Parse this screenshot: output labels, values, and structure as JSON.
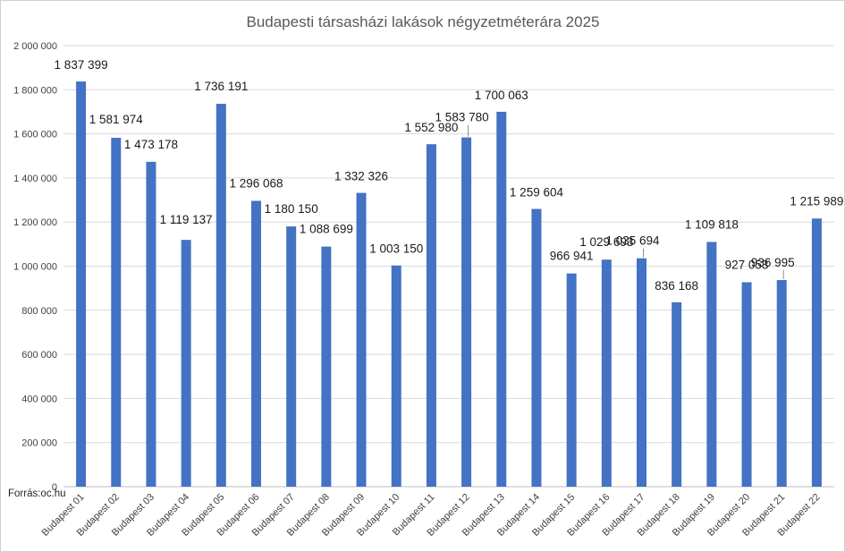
{
  "chart_data": {
    "type": "bar",
    "title": "Budapesti társasházi lakások négyzetméterára 2025",
    "xlabel": "",
    "ylabel": "",
    "ylim": [
      0,
      2000000
    ],
    "yticks": [
      0,
      200000,
      400000,
      600000,
      800000,
      1000000,
      1200000,
      1400000,
      1600000,
      1800000,
      2000000
    ],
    "ytick_labels": [
      "0",
      "200 000",
      "400 000",
      "600 000",
      "800 000",
      "1 000 000",
      "1 200 000",
      "1 400 000",
      "1 600 000",
      "1 800 000",
      "2 000 000"
    ],
    "grid": true,
    "legend": "none",
    "color": "#4472c4",
    "categories": [
      "Budapest 01",
      "Budapest 02",
      "Budapest 03",
      "Budapest 04",
      "Budapest 05",
      "Budapest 06",
      "Budapest 07",
      "Budapest 08",
      "Budapest 09",
      "Budapest 10",
      "Budapest 11",
      "Budapest 12",
      "Budapest 13",
      "Budapest 14",
      "Budapest 15",
      "Budapest 16",
      "Budapest 17",
      "Budapest 18",
      "Budapest 19",
      "Budapest 20",
      "Budapest 21",
      "Budapest 22"
    ],
    "values": [
      1837399,
      1581974,
      1473178,
      1119137,
      1736191,
      1296068,
      1180150,
      1088699,
      1332326,
      1003150,
      1552980,
      1583780,
      1700063,
      1259604,
      966941,
      1029693,
      1035694,
      836168,
      1109818,
      927053,
      936995,
      1215989
    ],
    "data_labels": [
      "1 837 399",
      "1 581 974",
      "1 473 178",
      "1 119 137",
      "1 736 191",
      "1 296 068",
      "1 180 150",
      "1 088 699",
      "1 332 326",
      "1 003 150",
      "1 552 980",
      "1 583 780",
      "1 700 063",
      "1 259 604",
      "966 941",
      "1 029 693",
      "1 035 694",
      "836 168",
      "1 109 818",
      "927 053",
      "936 995",
      "1 215 989"
    ],
    "leader_lines_on": [
      "Budapest 12",
      "Budapest 17",
      "Budapest 21"
    ],
    "source": "Forrás:oc.hu"
  }
}
